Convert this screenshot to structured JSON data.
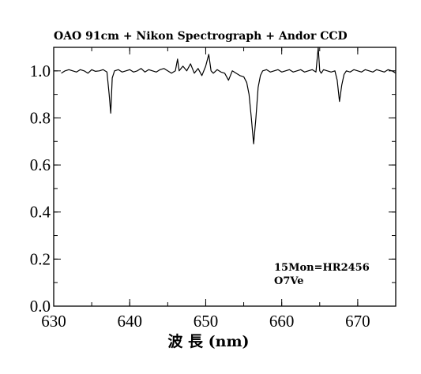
{
  "chart_data": {
    "type": "line",
    "title": "OAO 91cm + Nikon Spectrograph + Andor CCD",
    "xlabel": "波 長 (nm)",
    "ylabel": "",
    "xlim": [
      630,
      675
    ],
    "ylim": [
      0.0,
      1.1
    ],
    "xticks": [
      "630",
      "640",
      "650",
      "660",
      "670"
    ],
    "yticks": [
      "0.0",
      "0.2",
      "0.4",
      "0.6",
      "0.8",
      "1.0"
    ],
    "grid": false,
    "annotations": [
      "15Mon=HR2456",
      "O7Ve"
    ],
    "series": [
      {
        "x": [
          631.0,
          631.5,
          632.0,
          632.5,
          633.0,
          633.5,
          634.0,
          634.5,
          635.0,
          635.5,
          636.0,
          636.5,
          637.0,
          637.3,
          637.5,
          637.7,
          638.0,
          638.5,
          639.0,
          639.5,
          640.0,
          640.5,
          641.0,
          641.5,
          642.0,
          642.5,
          643.0,
          643.5,
          644.0,
          644.5,
          645.0,
          645.5,
          646.0,
          646.3,
          646.5,
          647.0,
          647.5,
          648.0,
          648.5,
          649.0,
          649.5,
          650.0,
          650.4,
          650.7,
          651.0,
          651.5,
          652.0,
          652.5,
          653.0,
          653.5,
          654.0,
          654.5,
          655.0,
          655.4,
          655.7,
          656.0,
          656.3,
          656.6,
          656.9,
          657.2,
          657.5,
          658.0,
          658.5,
          659.0,
          659.5,
          660.0,
          660.5,
          661.0,
          661.5,
          662.0,
          662.5,
          663.0,
          663.5,
          664.0,
          664.5,
          664.8,
          665.0,
          665.2,
          665.5,
          666.0,
          666.5,
          667.0,
          667.3,
          667.6,
          667.9,
          668.2,
          668.5,
          669.0,
          669.5,
          670.0,
          670.5,
          671.0,
          671.5,
          672.0,
          672.5,
          673.0,
          673.5,
          674.0,
          674.5,
          675.0
        ],
        "y": [
          0.99,
          1.0,
          1.005,
          1.0,
          0.995,
          1.005,
          1.0,
          0.99,
          1.005,
          0.998,
          1.0,
          1.005,
          0.995,
          0.9,
          0.82,
          0.97,
          1.0,
          1.005,
          0.995,
          1.0,
          1.005,
          0.995,
          1.0,
          1.01,
          0.995,
          1.005,
          1.0,
          0.995,
          1.005,
          1.01,
          1.0,
          0.99,
          1.0,
          1.05,
          1.0,
          1.02,
          1.0,
          1.03,
          0.99,
          1.01,
          0.98,
          1.02,
          1.07,
          1.0,
          0.99,
          1.005,
          0.995,
          0.99,
          0.96,
          1.0,
          0.99,
          0.98,
          0.975,
          0.95,
          0.9,
          0.8,
          0.69,
          0.8,
          0.93,
          0.98,
          1.0,
          1.005,
          0.995,
          1.0,
          1.005,
          0.995,
          1.0,
          1.005,
          0.995,
          1.0,
          1.005,
          0.995,
          1.0,
          1.005,
          0.995,
          1.1,
          1.0,
          0.99,
          1.005,
          1.0,
          0.995,
          1.0,
          0.96,
          0.87,
          0.94,
          0.985,
          1.0,
          0.995,
          1.005,
          1.0,
          0.995,
          1.005,
          1.0,
          0.995,
          1.005,
          1.0,
          0.995,
          1.005,
          1.0,
          0.99
        ]
      }
    ]
  }
}
